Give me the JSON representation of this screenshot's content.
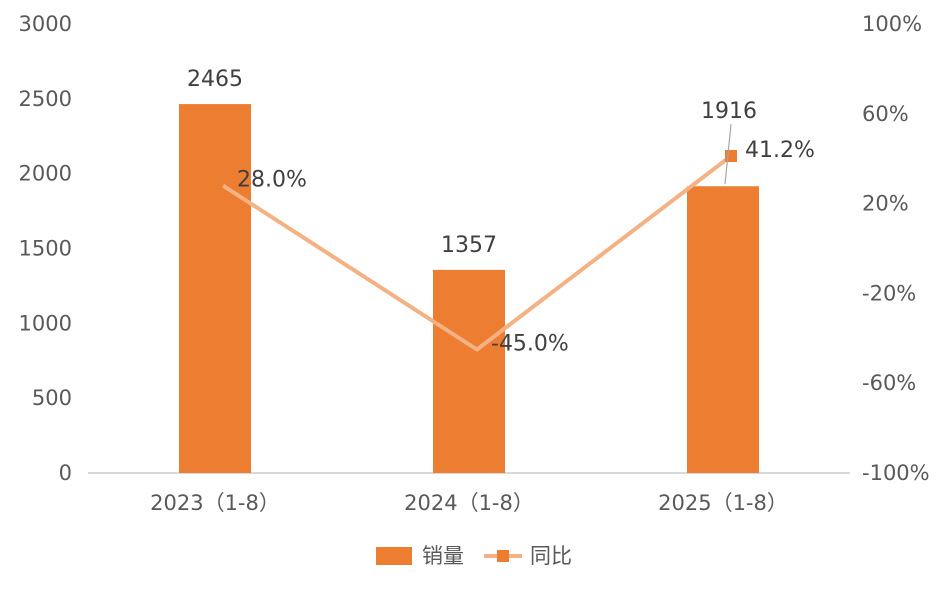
{
  "chart_data": {
    "type": "bar",
    "categories": [
      "2023（1-8）",
      "2024（1-8）",
      "2025（1-8）"
    ],
    "series": [
      {
        "name": "销量",
        "type": "bar",
        "axis": "left",
        "values": [
          2465,
          1357,
          1916
        ],
        "labels": [
          "2465",
          "1357",
          "1916"
        ]
      },
      {
        "name": "同比",
        "type": "line",
        "axis": "right",
        "values": [
          28.0,
          -45.0,
          41.2
        ],
        "labels": [
          "28.0%",
          "-45.0%",
          "41.2%"
        ]
      }
    ],
    "y_left": {
      "ylim": [
        0,
        3000
      ],
      "ticks": [
        "0",
        "500",
        "1000",
        "1500",
        "2000",
        "2500",
        "3000"
      ]
    },
    "y_right": {
      "ylim": [
        -100,
        100
      ],
      "ticks": [
        "-100%",
        "-60%",
        "-20%",
        "20%",
        "60%",
        "100%"
      ]
    },
    "legend": "bottom",
    "grid": false,
    "colors": {
      "bar": "#ED7D31",
      "line": "#F4B183",
      "marker": "#ED7D31",
      "text": "#595959",
      "axis": "#D9D9D9"
    }
  }
}
